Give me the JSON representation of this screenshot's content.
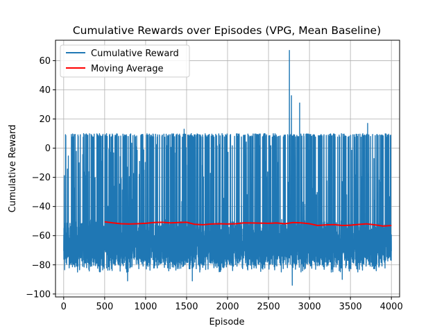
{
  "chart_data": {
    "type": "line",
    "title": "Cumulative Rewards over Episodes (VPG, Mean Baseline)",
    "xlabel": "Episode",
    "ylabel": "Cumulative Reward",
    "xlim": [
      -100,
      4100
    ],
    "ylim": [
      -102,
      74
    ],
    "x_ticks": [
      0,
      500,
      1000,
      1500,
      2000,
      2500,
      3000,
      3500,
      4000
    ],
    "y_ticks": [
      -100,
      -80,
      -60,
      -40,
      -20,
      0,
      20,
      40,
      60
    ],
    "grid": true,
    "legend_position": "top-left",
    "series": [
      {
        "name": "Cumulative Reward",
        "color": "#1f77b4",
        "kind": "noisy-episodic",
        "episodes": [
          0,
          4000
        ],
        "upper_envelope": 10,
        "band_low": -80,
        "band_high": -45,
        "spikes": [
          {
            "x": 2755,
            "y": 67
          },
          {
            "x": 2780,
            "y": 36
          },
          {
            "x": 2880,
            "y": 31
          },
          {
            "x": 3710,
            "y": 17
          },
          {
            "x": 1470,
            "y": 13
          }
        ],
        "dips": [
          {
            "x": 780,
            "y": -91
          },
          {
            "x": 1570,
            "y": -91
          },
          {
            "x": 2790,
            "y": -94
          },
          {
            "x": 3400,
            "y": -90
          }
        ]
      },
      {
        "name": "Moving Average",
        "color": "#ff0000",
        "x": [
          500,
          600,
          700,
          800,
          900,
          1000,
          1100,
          1200,
          1300,
          1400,
          1500,
          1600,
          1700,
          1800,
          1900,
          2000,
          2100,
          2200,
          2300,
          2400,
          2500,
          2600,
          2700,
          2800,
          2900,
          3000,
          3100,
          3200,
          3300,
          3400,
          3500,
          3600,
          3700,
          3800,
          3900,
          4000
        ],
        "values": [
          -50.5,
          -51.2,
          -51.8,
          -52.0,
          -51.8,
          -51.5,
          -51.0,
          -50.8,
          -51.2,
          -51.0,
          -50.8,
          -52.2,
          -52.5,
          -52.0,
          -51.8,
          -52.0,
          -51.8,
          -51.2,
          -51.3,
          -51.4,
          -51.5,
          -51.3,
          -51.8,
          -51.0,
          -51.2,
          -51.8,
          -53.0,
          -52.6,
          -52.4,
          -53.0,
          -52.8,
          -52.3,
          -51.9,
          -52.6,
          -53.4,
          -53.0
        ]
      }
    ]
  }
}
